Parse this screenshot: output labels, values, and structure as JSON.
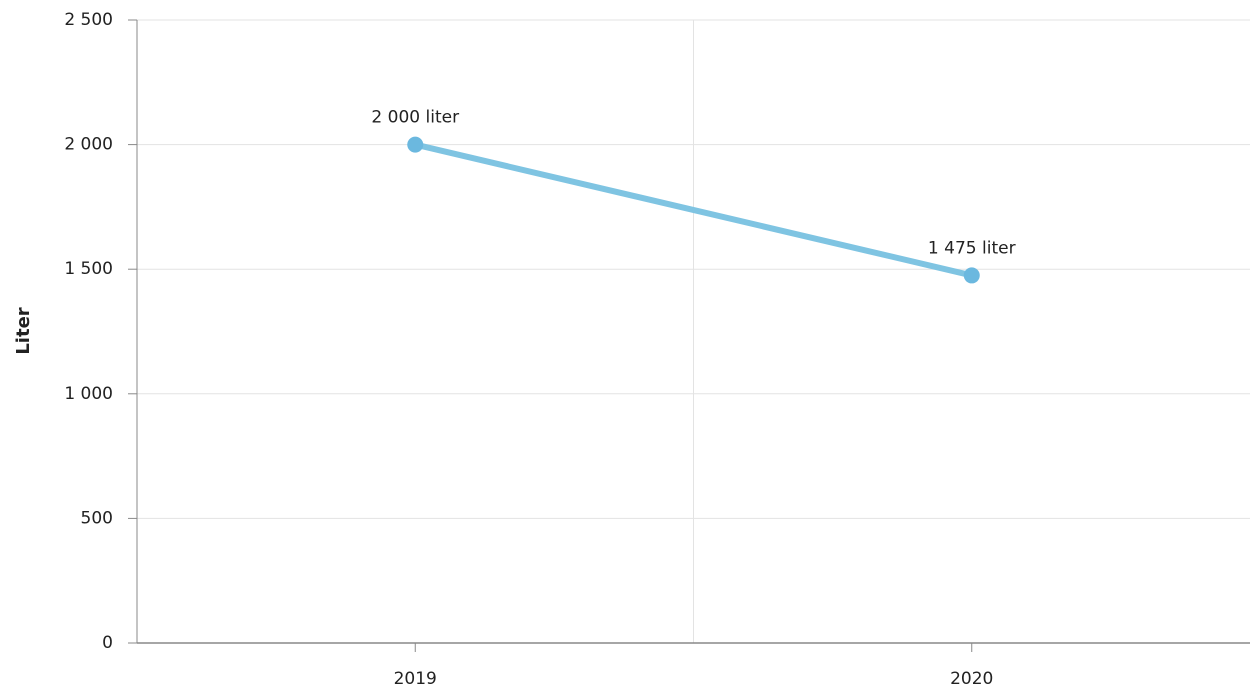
{
  "chart_data": {
    "type": "line",
    "y_label": "Liter",
    "categories": [
      "2019",
      "2020"
    ],
    "series": [
      {
        "name": "Liter",
        "color": "#7fc4e2",
        "marker_color": "#6bb8df",
        "values": [
          2000,
          1475
        ],
        "value_labels": [
          "2 000 liter",
          "1 475 liter"
        ]
      }
    ],
    "ylim": [
      0,
      2500
    ],
    "yticks": [
      0,
      500,
      {
        "value": 1000,
        "label": "1 000"
      },
      {
        "value": 1500,
        "label": "1 500"
      },
      {
        "value": 2000,
        "label": "2 000"
      },
      {
        "value": 2500,
        "label": "2 500"
      }
    ],
    "grid": true
  }
}
